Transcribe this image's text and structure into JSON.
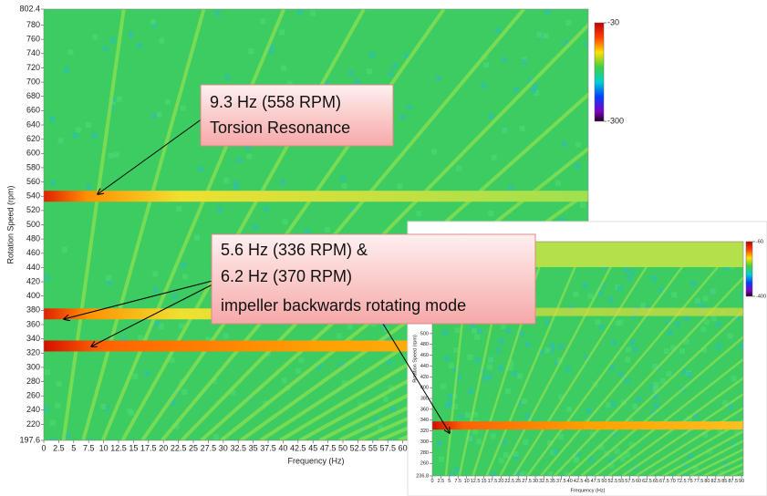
{
  "chart_data": [
    {
      "type": "heatmap",
      "xlabel": "Frequency (Hz)",
      "ylabel": "Rotation Speed (rpm)",
      "xlim": [
        0,
        91
      ],
      "ylim": [
        197.6,
        802.4
      ],
      "xticks": [
        0,
        2.5,
        5,
        7.5,
        10,
        12.5,
        15,
        17.5,
        20,
        22.5,
        25,
        27.5,
        30,
        32.5,
        35,
        37.5,
        40,
        42.5,
        45,
        47.5,
        50,
        52.5,
        55,
        57.5,
        60
      ],
      "yticks": [
        197.6,
        220,
        240,
        260,
        280,
        300,
        320,
        340,
        360,
        380,
        400,
        420,
        440,
        460,
        480,
        500,
        520,
        540,
        560,
        580,
        600,
        620,
        640,
        660,
        680,
        700,
        720,
        740,
        760,
        780,
        802.4
      ],
      "clim": [
        -300,
        -30
      ],
      "cticks": [
        -30,
        -300
      ],
      "bands": [
        540,
        375,
        330
      ]
    },
    {
      "type": "heatmap",
      "xlabel": "Frequency (Hz)",
      "ylabel": "Rotation Speed (rpm)",
      "xlim": [
        0,
        90.5
      ],
      "ylim": [
        236.8,
        670
      ],
      "xticks": [
        0,
        2.5,
        5,
        7.5,
        10,
        12.5,
        15,
        17.5,
        20,
        22.5,
        25,
        27.5,
        30,
        32.5,
        35,
        37.5,
        40,
        42.5,
        45,
        47.5,
        50,
        52.5,
        55,
        57.5,
        60,
        62.5,
        65,
        67.5,
        70,
        72.5,
        75,
        77.5,
        80,
        82.5,
        85,
        87.5,
        90
      ],
      "yticks": [
        236.8,
        260,
        280,
        300,
        320,
        340,
        360,
        380,
        400,
        420,
        440,
        460,
        480,
        500,
        520,
        540,
        560,
        580,
        600,
        620,
        640
      ],
      "clim": [
        -400,
        -60
      ],
      "cticks": [
        -60,
        -400
      ],
      "bands": [
        330,
        540
      ]
    }
  ],
  "annotations": [
    {
      "lines": [
        "9.3 Hz (558 RPM)",
        "Torsion Resonance"
      ]
    },
    {
      "lines": [
        "5.6 Hz (336 RPM) &",
        "6.2 Hz (370 RPM)",
        "impeller backwards rotating mode"
      ]
    }
  ]
}
